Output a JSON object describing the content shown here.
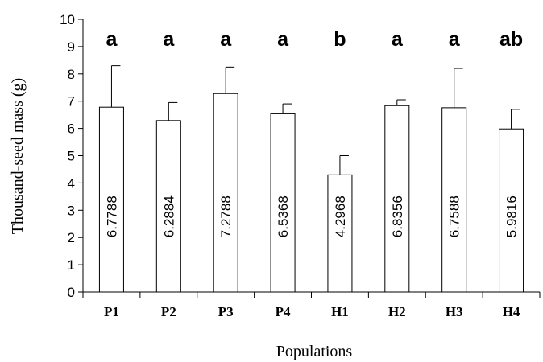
{
  "chart_data": {
    "type": "bar",
    "title": "",
    "xlabel": "Populations",
    "ylabel": "Thousand-seed mass (g)",
    "ylim": [
      0,
      10
    ],
    "yticks": [
      "0",
      "1",
      "2",
      "3",
      "4",
      "5",
      "6",
      "7",
      "8",
      "9",
      "10"
    ],
    "categories": [
      "P1",
      "P2",
      "P3",
      "P4",
      "H1",
      "H2",
      "H3",
      "H4"
    ],
    "values": [
      6.7788,
      6.2884,
      7.2788,
      6.5368,
      4.2968,
      6.8356,
      6.7588,
      5.9816
    ],
    "value_labels": [
      "6.7788",
      "6.2884",
      "7.2788",
      "6.5368",
      "4.2968",
      "6.8356",
      "6.7588",
      "5.9816"
    ],
    "error_upper": [
      8.3,
      6.95,
      8.25,
      6.9,
      5.0,
      7.05,
      8.2,
      6.7
    ],
    "significance": [
      "a",
      "a",
      "a",
      "a",
      "b",
      "a",
      "a",
      "ab"
    ],
    "bar_fill": "#ffffff",
    "bar_stroke": "#000000",
    "grid": false
  }
}
